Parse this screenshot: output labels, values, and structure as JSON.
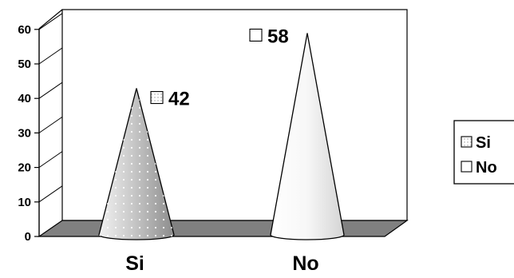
{
  "chart_data": {
    "type": "bar",
    "style": "3d-cone",
    "categories": [
      "Si",
      "No"
    ],
    "values": [
      42,
      58
    ],
    "data_labels": [
      "42",
      "58"
    ],
    "ylim": [
      0,
      60
    ],
    "y_ticks": [
      0,
      10,
      20,
      30,
      40,
      50,
      60
    ],
    "y_tick_labels": [
      "0",
      "10",
      "20",
      "30",
      "40",
      "50",
      "60"
    ],
    "title": "",
    "xlabel": "",
    "ylabel": "",
    "grid": true,
    "legend": {
      "placement": "right",
      "entries": [
        "Si",
        "No"
      ]
    },
    "colors": {
      "Si": "#c8c8c8",
      "No": "#f4f4f4",
      "floor": "#808080",
      "outline": "#000000"
    }
  }
}
